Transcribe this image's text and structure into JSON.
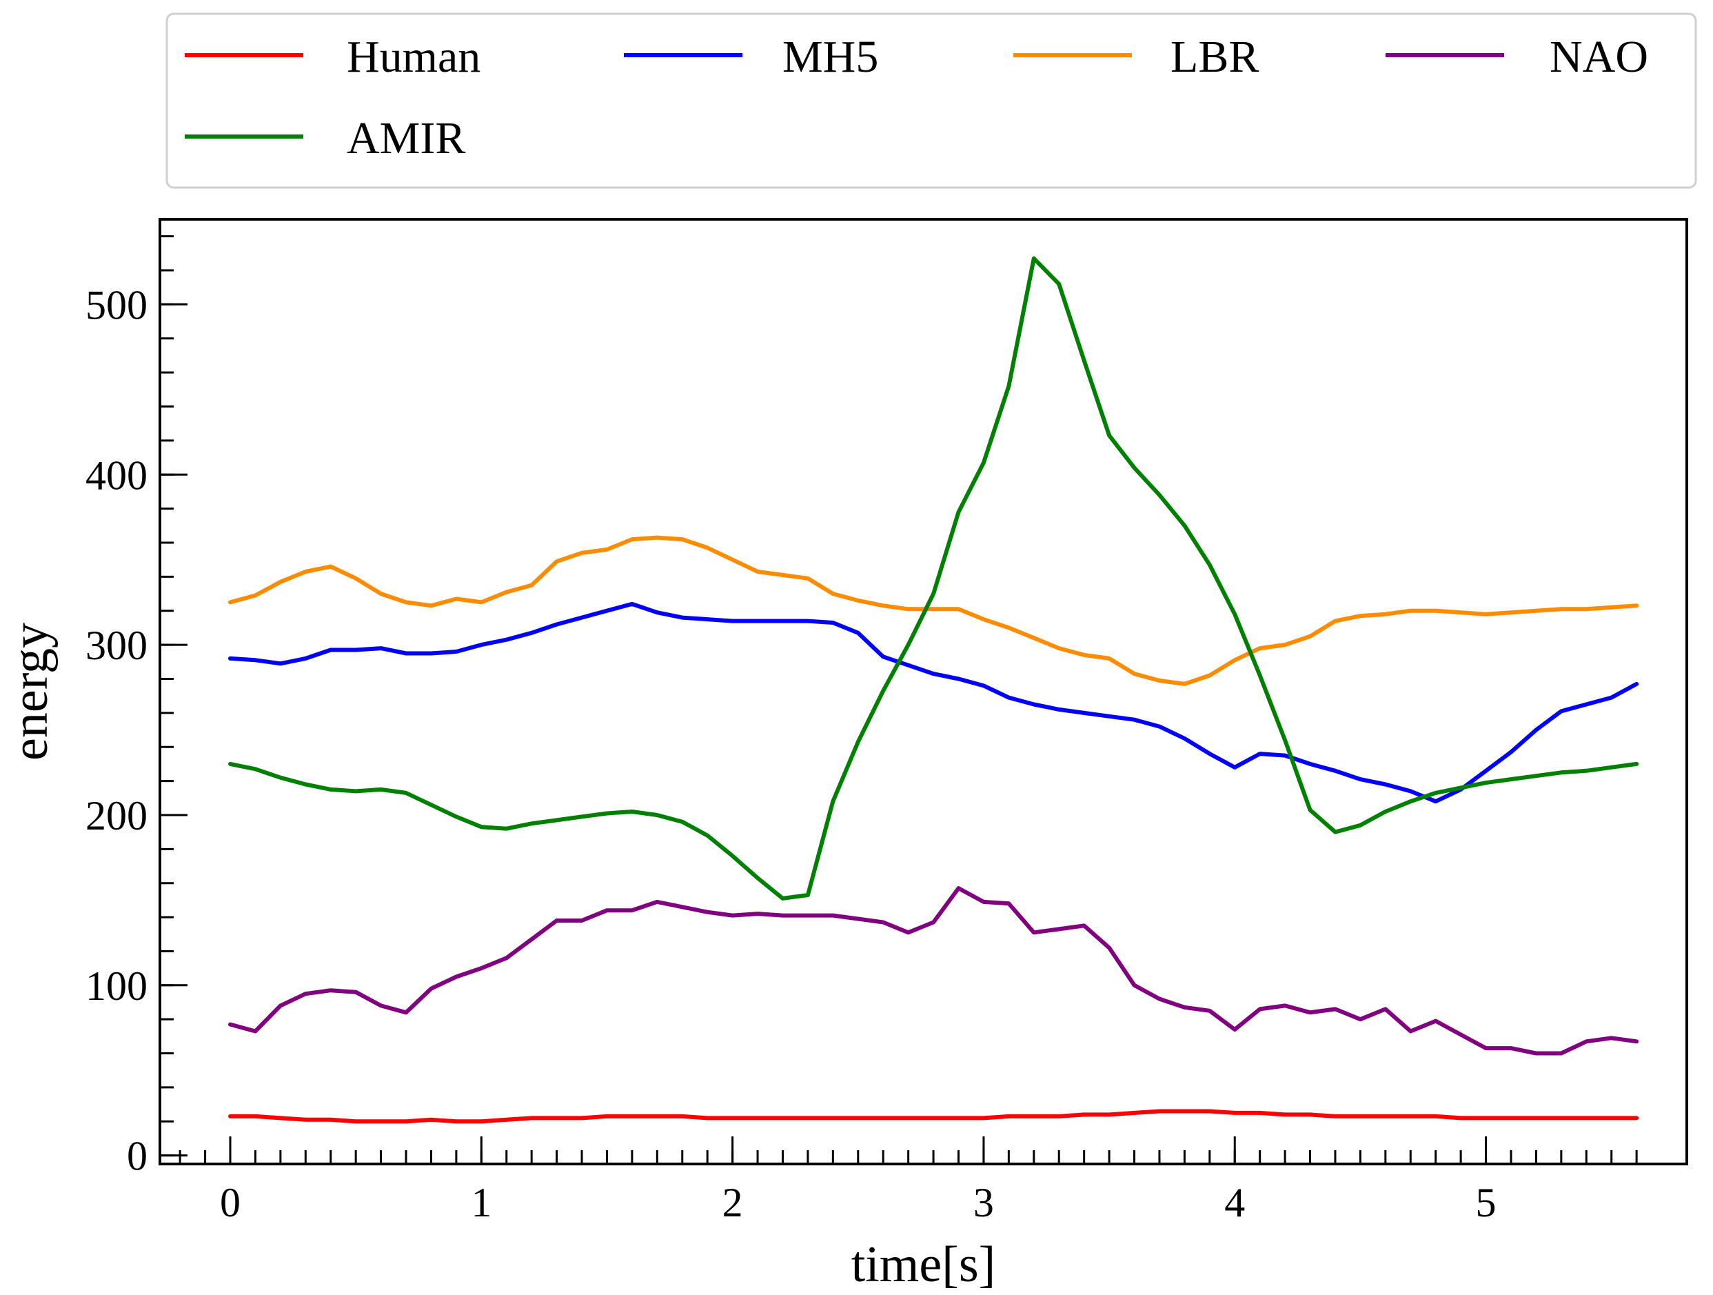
{
  "chart_data": {
    "type": "line",
    "title": "",
    "xlabel": "time[s]",
    "ylabel": "energy",
    "xlim": [
      -0.28,
      5.8
    ],
    "ylim": [
      -5,
      550
    ],
    "xticks": [
      0,
      1,
      2,
      3,
      4,
      5
    ],
    "yticks": [
      0,
      100,
      200,
      300,
      400,
      500
    ],
    "x_minor_step": 0.1,
    "y_minor_step": 20,
    "legend_position": "top, outside plot area",
    "grid": false,
    "x": [
      0,
      0.1,
      0.2,
      0.3,
      0.4,
      0.5,
      0.6,
      0.7,
      0.8,
      0.9,
      1.0,
      1.1,
      1.2,
      1.3,
      1.4,
      1.5,
      1.6,
      1.7,
      1.8,
      1.9,
      2.0,
      2.1,
      2.2,
      2.3,
      2.4,
      2.5,
      2.6,
      2.7,
      2.8,
      2.9,
      3.0,
      3.1,
      3.2,
      3.3,
      3.4,
      3.5,
      3.6,
      3.7,
      3.8,
      3.9,
      4.0,
      4.1,
      4.2,
      4.3,
      4.4,
      4.5,
      4.6,
      4.7,
      4.8,
      4.9,
      5.0,
      5.1,
      5.2,
      5.3,
      5.4,
      5.5,
      5.6
    ],
    "series": [
      {
        "name": "Human",
        "color": "#ff0000",
        "values": [
          23,
          23,
          22,
          21,
          21,
          20,
          20,
          20,
          21,
          20,
          20,
          21,
          22,
          22,
          22,
          23,
          23,
          23,
          23,
          22,
          22,
          22,
          22,
          22,
          22,
          22,
          22,
          22,
          22,
          22,
          22,
          23,
          23,
          23,
          24,
          24,
          25,
          26,
          26,
          26,
          25,
          25,
          24,
          24,
          23,
          23,
          23,
          23,
          23,
          22,
          22,
          22,
          22,
          22,
          22,
          22,
          22
        ]
      },
      {
        "name": "MH5",
        "color": "#0000ff",
        "values": [
          292,
          291,
          289,
          292,
          297,
          297,
          298,
          295,
          295,
          296,
          300,
          303,
          307,
          312,
          316,
          320,
          324,
          319,
          316,
          315,
          314,
          314,
          314,
          314,
          313,
          307,
          293,
          288,
          283,
          280,
          276,
          269,
          265,
          262,
          260,
          258,
          256,
          252,
          245,
          236,
          228,
          236,
          235,
          230,
          226,
          221,
          218,
          214,
          208,
          215,
          226,
          237,
          250,
          261,
          265,
          269,
          277
        ]
      },
      {
        "name": "LBR",
        "color": "#ff8c00",
        "values": [
          325,
          329,
          337,
          343,
          346,
          339,
          330,
          325,
          323,
          327,
          325,
          331,
          335,
          349,
          354,
          356,
          362,
          363,
          362,
          357,
          350,
          343,
          341,
          339,
          330,
          326,
          323,
          321,
          321,
          321,
          315,
          310,
          304,
          298,
          294,
          292,
          283,
          279,
          277,
          282,
          291,
          298,
          300,
          305,
          314,
          317,
          318,
          320,
          320,
          319,
          318,
          319,
          320,
          321,
          321,
          322,
          323
        ]
      },
      {
        "name": "NAO",
        "color": "#800080",
        "values": [
          77,
          73,
          88,
          95,
          97,
          96,
          88,
          84,
          98,
          105,
          110,
          116,
          127,
          138,
          138,
          144,
          144,
          149,
          146,
          143,
          141,
          142,
          141,
          141,
          141,
          139,
          137,
          131,
          137,
          157,
          149,
          148,
          131,
          133,
          135,
          122,
          100,
          92,
          87,
          85,
          74,
          86,
          88,
          84,
          86,
          80,
          86,
          73,
          79,
          71,
          63,
          63,
          60,
          60,
          67,
          69,
          67
        ]
      },
      {
        "name": "AMIR",
        "color": "#008000",
        "values": [
          230,
          227,
          222,
          218,
          215,
          214,
          215,
          213,
          206,
          199,
          193,
          192,
          195,
          197,
          199,
          201,
          202,
          200,
          196,
          188,
          176,
          163,
          151,
          153,
          208,
          243,
          273,
          300,
          330,
          378,
          407,
          452,
          527,
          512,
          467,
          423,
          404,
          388,
          370,
          347,
          318,
          282,
          244,
          203,
          190,
          194,
          202,
          208,
          213,
          216,
          219,
          221,
          223,
          225,
          226,
          228,
          230
        ]
      }
    ]
  }
}
